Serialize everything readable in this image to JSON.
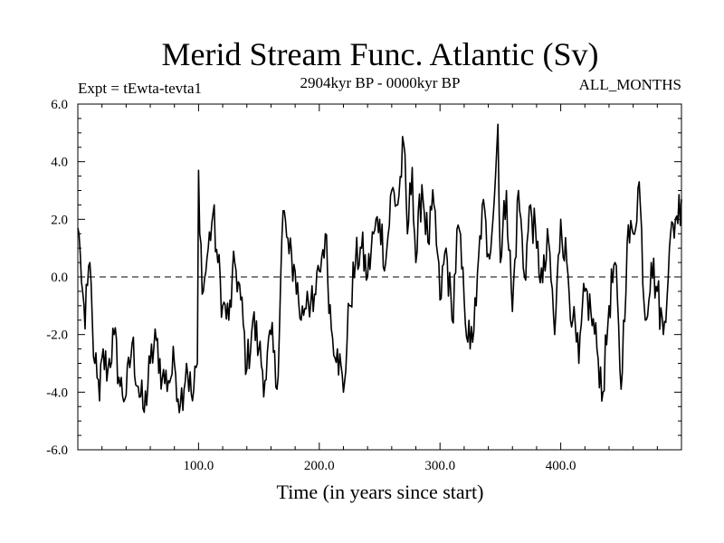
{
  "chart_data": {
    "type": "line",
    "title": "Merid Stream Func. Atlantic (Sv)",
    "subtitle_left": "Expt = tEwta-tevta1",
    "subtitle_center": "2904kyr BP - 0000kyr BP",
    "subtitle_right": "ALL_MONTHS",
    "xlabel": "Time (in years since start)",
    "ylabel": "",
    "xlim": [
      0,
      500
    ],
    "ylim": [
      -6,
      6
    ],
    "x_ticks": [
      100,
      200,
      300,
      400
    ],
    "x_tick_labels": [
      "100.0",
      "200.0",
      "300.0",
      "400.0"
    ],
    "y_ticks": [
      -6,
      -4,
      -2,
      0,
      2,
      4,
      6
    ],
    "y_tick_labels": [
      "-6.0",
      "-4.0",
      "-2.0",
      "0.0",
      "2.0",
      "4.0",
      "6.0"
    ],
    "zero_line": {
      "value": 0,
      "style": "dashed"
    },
    "series": [
      {
        "name": "Merid Stream Func. Atlantic",
        "anchors": [
          [
            0,
            1.7
          ],
          [
            2,
            0.8
          ],
          [
            4,
            -0.5
          ],
          [
            6,
            -1.8
          ],
          [
            8,
            -0.3
          ],
          [
            10,
            0.5
          ],
          [
            12,
            -1.5
          ],
          [
            14,
            -3.0
          ],
          [
            16,
            -3.5
          ],
          [
            18,
            -4.3
          ],
          [
            20,
            -2.8
          ],
          [
            25,
            -3.2
          ],
          [
            30,
            -2.0
          ],
          [
            35,
            -3.8
          ],
          [
            40,
            -4.1
          ],
          [
            45,
            -2.3
          ],
          [
            50,
            -3.8
          ],
          [
            55,
            -4.7
          ],
          [
            60,
            -3.0
          ],
          [
            65,
            -2.2
          ],
          [
            70,
            -3.5
          ],
          [
            75,
            -3.6
          ],
          [
            80,
            -3.0
          ],
          [
            85,
            -4.4
          ],
          [
            90,
            -3.0
          ],
          [
            95,
            -4.3
          ],
          [
            99,
            -3.0
          ],
          [
            100,
            3.7
          ],
          [
            101,
            1.5
          ],
          [
            104,
            -0.5
          ],
          [
            108,
            1.0
          ],
          [
            112,
            2.2
          ],
          [
            116,
            0.5
          ],
          [
            120,
            -1.0
          ],
          [
            125,
            -1.5
          ],
          [
            130,
            0.5
          ],
          [
            135,
            -0.8
          ],
          [
            140,
            -3.2
          ],
          [
            145,
            -1.5
          ],
          [
            150,
            -2.5
          ],
          [
            155,
            -3.6
          ],
          [
            160,
            -2.0
          ],
          [
            165,
            -3.9
          ],
          [
            170,
            2.3
          ],
          [
            175,
            0.8
          ],
          [
            180,
            0.2
          ],
          [
            185,
            -1.5
          ],
          [
            190,
            -0.5
          ],
          [
            195,
            -1.2
          ],
          [
            200,
            0.2
          ],
          [
            205,
            1.5
          ],
          [
            210,
            -1.8
          ],
          [
            215,
            -2.5
          ],
          [
            220,
            -4.0
          ],
          [
            225,
            -1.0
          ],
          [
            230,
            0.5
          ],
          [
            235,
            1.0
          ],
          [
            240,
            0.0
          ],
          [
            245,
            1.5
          ],
          [
            250,
            2.0
          ],
          [
            255,
            0.5
          ],
          [
            260,
            3.0
          ],
          [
            265,
            2.5
          ],
          [
            270,
            4.6
          ],
          [
            273,
            1.5
          ],
          [
            277,
            3.8
          ],
          [
            280,
            0.5
          ],
          [
            285,
            3.2
          ],
          [
            290,
            1.2
          ],
          [
            295,
            2.5
          ],
          [
            300,
            -0.8
          ],
          [
            305,
            1.0
          ],
          [
            310,
            -1.5
          ],
          [
            315,
            1.8
          ],
          [
            320,
            -0.8
          ],
          [
            325,
            -2.5
          ],
          [
            330,
            -1.0
          ],
          [
            335,
            2.5
          ],
          [
            340,
            0.8
          ],
          [
            345,
            2.7
          ],
          [
            348,
            5.3
          ],
          [
            350,
            0.5
          ],
          [
            355,
            3.0
          ],
          [
            360,
            -1.2
          ],
          [
            365,
            3.0
          ],
          [
            370,
            0.0
          ],
          [
            375,
            2.5
          ],
          [
            380,
            1.0
          ],
          [
            385,
            -0.2
          ],
          [
            390,
            1.2
          ],
          [
            395,
            -2.0
          ],
          [
            400,
            2.0
          ],
          [
            405,
            0.5
          ],
          [
            410,
            -1.5
          ],
          [
            415,
            -3.0
          ],
          [
            420,
            -0.5
          ],
          [
            425,
            -1.2
          ],
          [
            430,
            -2.5
          ],
          [
            435,
            -4.0
          ],
          [
            440,
            -1.0
          ],
          [
            445,
            0.5
          ],
          [
            450,
            -3.9
          ],
          [
            455,
            1.2
          ],
          [
            460,
            1.5
          ],
          [
            465,
            3.3
          ],
          [
            470,
            -1.5
          ],
          [
            475,
            0.5
          ],
          [
            480,
            -0.5
          ],
          [
            485,
            -2.0
          ],
          [
            490,
            1.0
          ],
          [
            495,
            2.0
          ],
          [
            500,
            2.7
          ]
        ]
      }
    ]
  }
}
